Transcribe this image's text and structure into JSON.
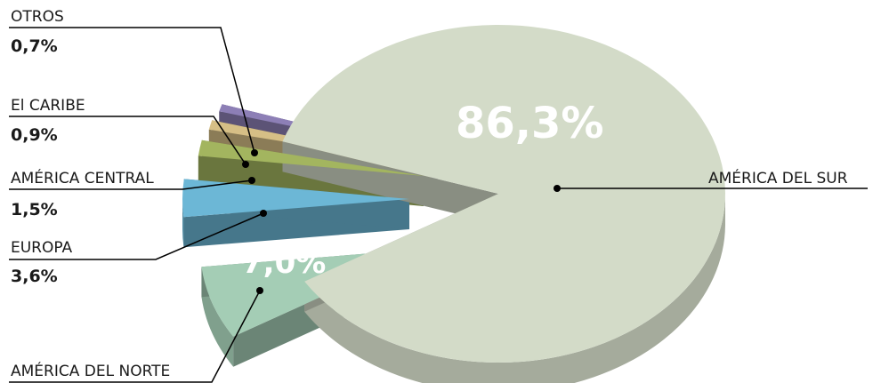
{
  "chart_data": {
    "type": "pie",
    "title": "",
    "slices": [
      {
        "name": "AMÉRICA DEL SUR",
        "label": "86,3%",
        "value": 86.3,
        "color": "#d3dbc8"
      },
      {
        "name": "AMÉRICA DEL NORTE",
        "label": "7,0%",
        "value": 7.0,
        "color": "#a4cdb5"
      },
      {
        "name": "EUROPA",
        "label": "3,6%",
        "value": 3.6,
        "color": "#6cb7d6"
      },
      {
        "name": "AMÉRICA CENTRAL",
        "label": "1,5%",
        "value": 1.5,
        "color": "#a3b55f"
      },
      {
        "name": "El CARIBE",
        "label": "0,9%",
        "value": 0.9,
        "color": "#d6bf86"
      },
      {
        "name": "OTROS",
        "label": "0,7%",
        "value": 0.7,
        "color": "#8d7fb6"
      }
    ],
    "legend": "callout-labels"
  }
}
